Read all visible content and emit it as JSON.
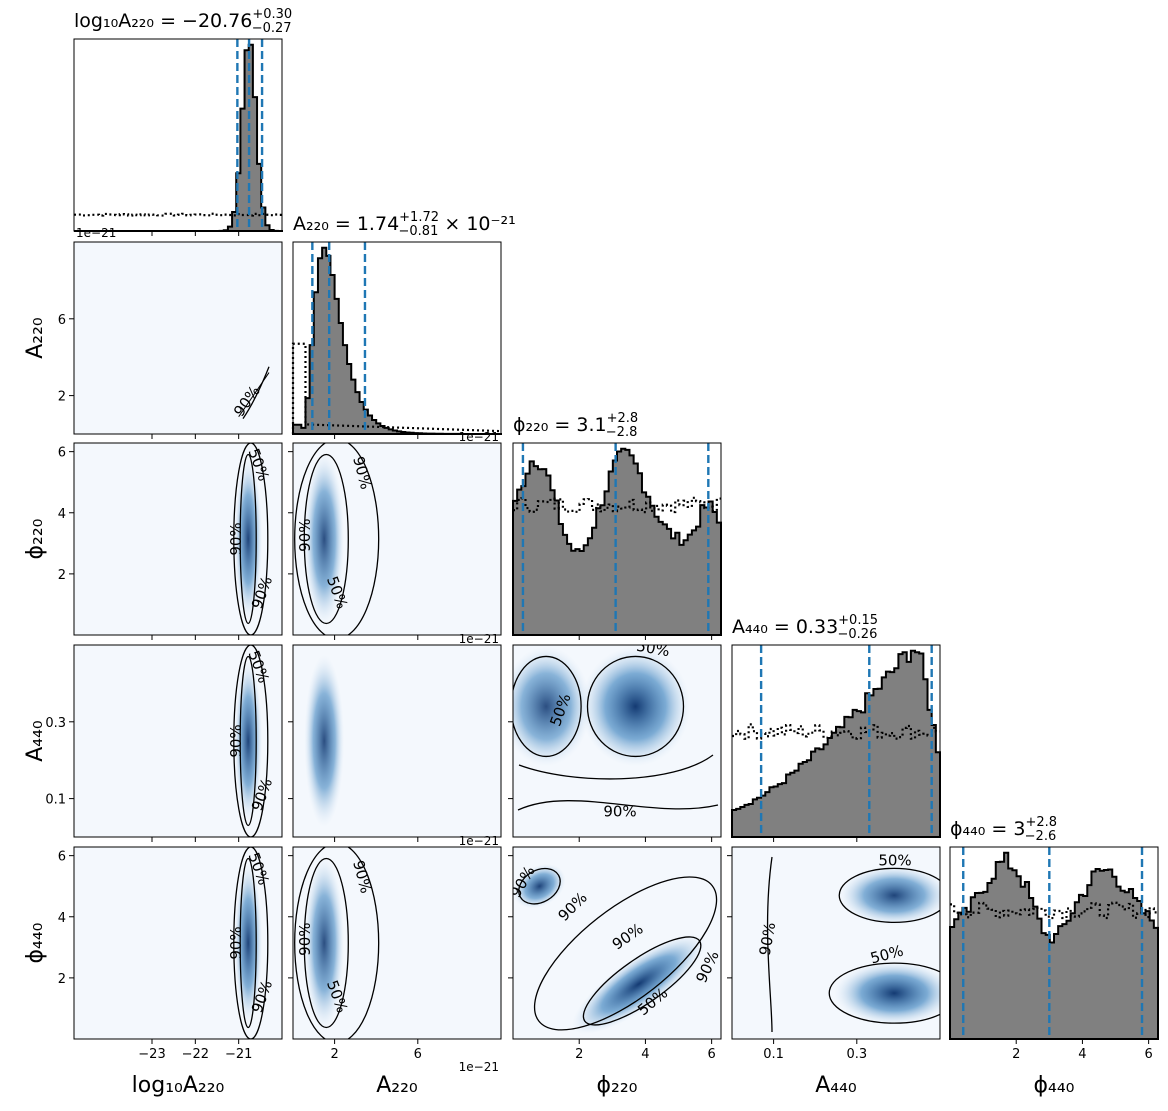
{
  "chart_data": {
    "type": "corner",
    "parameters": [
      {
        "key": "logA220",
        "label": "log₁₀A₂₂₀",
        "range": [
          -24.8,
          -20.0
        ],
        "ticks": [
          -23,
          -22,
          -21
        ],
        "tick_labels": [
          "−23",
          "−22",
          "−21"
        ],
        "title": {
          "prefix": "log₁₀A₂₂₀ = ",
          "value": "−20.76",
          "upper": "+0.30",
          "lower": "−0.27",
          "suffix": ""
        },
        "quantiles": [
          -21.03,
          -20.76,
          -20.46
        ],
        "mode": -20.76,
        "sigma": 0.16
      },
      {
        "key": "A220",
        "label": "A₂₂₀",
        "range": [
          0,
          10
        ],
        "ticks": [
          2,
          6
        ],
        "tick_labels": [
          "2",
          "6"
        ],
        "offset_text": "1e−21",
        "title": {
          "prefix": "A₂₂₀ = ",
          "value": "1.74",
          "upper": "+1.72",
          "lower": "−0.81",
          "suffix": " × 10⁻²¹"
        },
        "quantiles": [
          0.93,
          1.74,
          3.46
        ],
        "mode": 1.5,
        "sigma": 0.6
      },
      {
        "key": "phi220",
        "label": "ϕ₂₂₀",
        "range": [
          0,
          6.283
        ],
        "ticks": [
          2,
          4,
          6
        ],
        "tick_labels": [
          "2",
          "4",
          "6"
        ],
        "title": {
          "prefix": "ϕ₂₂₀ = ",
          "value": "3.1",
          "upper": "+2.8",
          "lower": "−2.8",
          "suffix": ""
        },
        "quantiles": [
          0.3,
          3.1,
          5.9
        ]
      },
      {
        "key": "A440",
        "label": "A₄₄₀",
        "range": [
          0.0,
          0.5
        ],
        "ticks": [
          0.1,
          0.3
        ],
        "tick_labels": [
          "0.1",
          "0.3"
        ],
        "title": {
          "prefix": "A₄₄₀ = ",
          "value": "0.33",
          "upper": "+0.15",
          "lower": "−0.26",
          "suffix": ""
        },
        "quantiles": [
          0.07,
          0.33,
          0.48
        ]
      },
      {
        "key": "phi440",
        "label": "ϕ₄₄₀",
        "range": [
          0,
          6.283
        ],
        "ticks": [
          2,
          4,
          6
        ],
        "tick_labels": [
          "2",
          "4",
          "6"
        ],
        "title": {
          "prefix": "ϕ₄₄₀ = ",
          "value": "3",
          "upper": "+2.8",
          "lower": "−2.6",
          "suffix": ""
        },
        "quantiles": [
          0.4,
          3.0,
          5.8
        ]
      }
    ],
    "y_ticks": {
      "A220": {
        "ticks": [
          2,
          6
        ],
        "labels": [
          "2",
          "6"
        ],
        "offset_text": "1e−21"
      },
      "phi220": {
        "ticks": [
          2,
          4,
          6
        ],
        "labels": [
          "2",
          "4",
          "6"
        ]
      },
      "A440": {
        "ticks": [
          0.1,
          0.3
        ],
        "labels": [
          "0.1",
          "0.3"
        ]
      },
      "phi440": {
        "ticks": [
          2,
          4,
          6
        ],
        "labels": [
          "2",
          "4",
          "6"
        ]
      }
    },
    "contour_labels": [
      "50%",
      "90%"
    ],
    "colors": {
      "posterior_fill": "#808080",
      "quantile_line": "#1f77b4",
      "density": "#08306b",
      "background_density": "#f4f8fd"
    }
  }
}
